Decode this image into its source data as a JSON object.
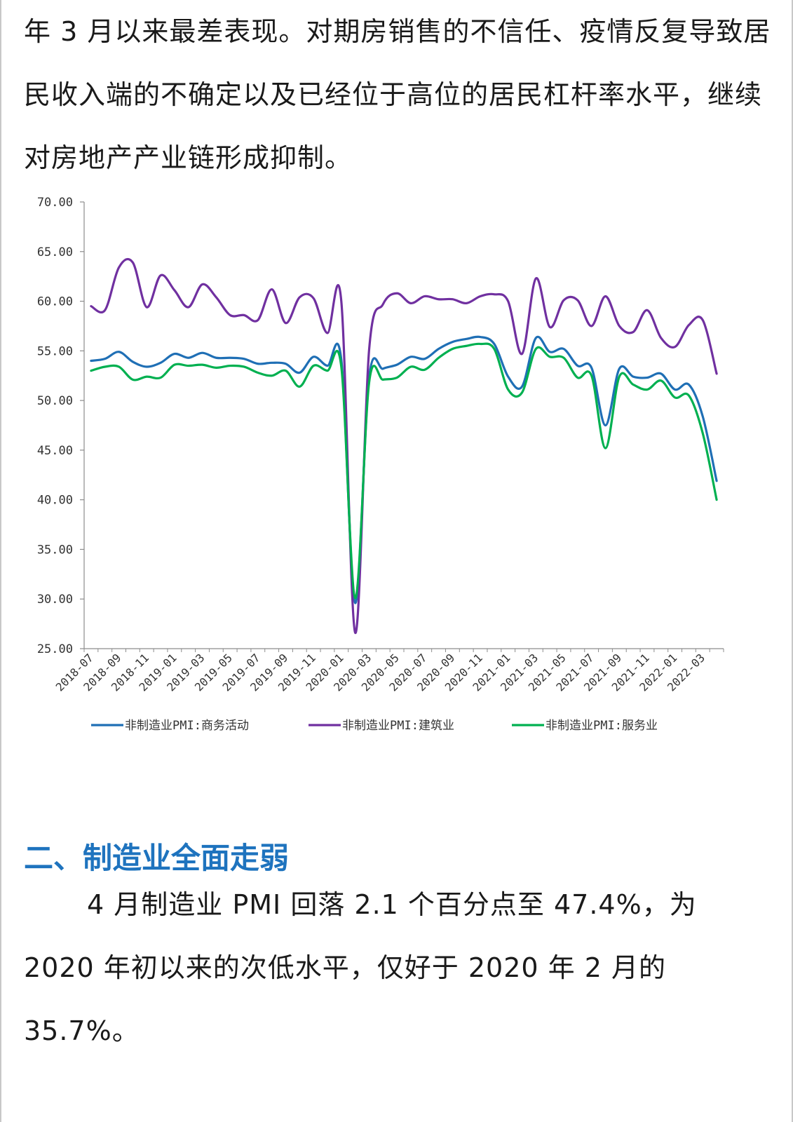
{
  "intro": {
    "text": "年 3 月以来最差表现。对期房销售的不信任、疫情反复导致居民收入端的不确定以及已经位于高位的居民杠杆率水平，继续对房地产产业链形成抑制。"
  },
  "section": {
    "heading": "二、制造业全面走弱",
    "body": "4 月制造业 PMI 回落 2.1 个百分点至 47.4%，为 2020 年初以来的次低水平，仅好于 2020 年 2 月的 35.7%。"
  },
  "chart_data": {
    "type": "line",
    "title": "",
    "xlabel": "",
    "ylabel": "",
    "ylim": [
      25,
      70
    ],
    "yticks": [
      "25.00",
      "30.00",
      "35.00",
      "40.00",
      "45.00",
      "50.00",
      "55.00",
      "60.00",
      "65.00",
      "70.00"
    ],
    "x_tick_labels": [
      "2018-07",
      "2018-09",
      "2018-11",
      "2019-01",
      "2019-03",
      "2019-05",
      "2019-07",
      "2019-09",
      "2019-11",
      "2020-01",
      "2020-03",
      "2020-05",
      "2020-07",
      "2020-09",
      "2020-11",
      "2021-01",
      "2021-03",
      "2021-05",
      "2021-07",
      "2021-09",
      "2021-11",
      "2022-01",
      "2022-03"
    ],
    "x": [
      "2018-07",
      "2018-08",
      "2018-09",
      "2018-10",
      "2018-11",
      "2018-12",
      "2019-01",
      "2019-02",
      "2019-03",
      "2019-04",
      "2019-05",
      "2019-06",
      "2019-07",
      "2019-08",
      "2019-09",
      "2019-10",
      "2019-11",
      "2019-12",
      "2020-01",
      "2020-02",
      "2020-03",
      "2020-04",
      "2020-05",
      "2020-06",
      "2020-07",
      "2020-08",
      "2020-09",
      "2020-10",
      "2020-11",
      "2020-12",
      "2021-01",
      "2021-02",
      "2021-03",
      "2021-04",
      "2021-05",
      "2021-06",
      "2021-07",
      "2021-08",
      "2021-09",
      "2021-10",
      "2021-11",
      "2021-12",
      "2022-01",
      "2022-02",
      "2022-03",
      "2022-04"
    ],
    "legend_position": "bottom",
    "grid": false,
    "series": [
      {
        "name": "非制造业PMI:商务活动",
        "color": "#1f6fb5",
        "values": [
          54.0,
          54.2,
          54.9,
          53.9,
          53.4,
          53.8,
          54.7,
          54.3,
          54.8,
          54.3,
          54.3,
          54.2,
          53.7,
          53.8,
          53.7,
          52.8,
          54.4,
          53.5,
          54.1,
          29.6,
          52.3,
          53.2,
          53.6,
          54.4,
          54.2,
          55.2,
          55.9,
          56.2,
          56.4,
          55.7,
          52.4,
          51.4,
          56.3,
          54.9,
          55.2,
          53.5,
          53.3,
          47.5,
          53.2,
          52.4,
          52.3,
          52.7,
          51.1,
          51.6,
          48.4,
          41.9
        ]
      },
      {
        "name": "非制造业PMI:建筑业",
        "color": "#7030a0",
        "values": [
          59.5,
          59.1,
          63.4,
          63.9,
          59.4,
          62.6,
          61.1,
          59.4,
          61.7,
          60.4,
          58.6,
          58.6,
          58.1,
          61.2,
          57.8,
          60.4,
          60.3,
          56.8,
          60.0,
          26.6,
          55.1,
          59.7,
          60.8,
          59.8,
          60.5,
          60.2,
          60.2,
          59.8,
          60.5,
          60.7,
          60.0,
          54.7,
          62.3,
          57.4,
          60.1,
          60.1,
          57.5,
          60.5,
          57.5,
          56.9,
          59.1,
          56.3,
          55.4,
          57.6,
          58.1,
          52.7
        ]
      },
      {
        "name": "非制造业PMI:服务业",
        "color": "#00b050",
        "values": [
          53.0,
          53.4,
          53.4,
          52.1,
          52.4,
          52.3,
          53.6,
          53.5,
          53.6,
          53.3,
          53.5,
          53.4,
          52.8,
          52.5,
          53.0,
          51.4,
          53.5,
          53.0,
          53.4,
          30.1,
          51.8,
          52.1,
          52.3,
          53.4,
          53.1,
          54.3,
          55.2,
          55.5,
          55.7,
          55.2,
          51.1,
          50.8,
          55.2,
          54.4,
          54.3,
          52.3,
          52.5,
          45.2,
          52.4,
          51.6,
          51.1,
          52.0,
          50.3,
          50.5,
          46.7,
          40.0
        ]
      }
    ]
  }
}
